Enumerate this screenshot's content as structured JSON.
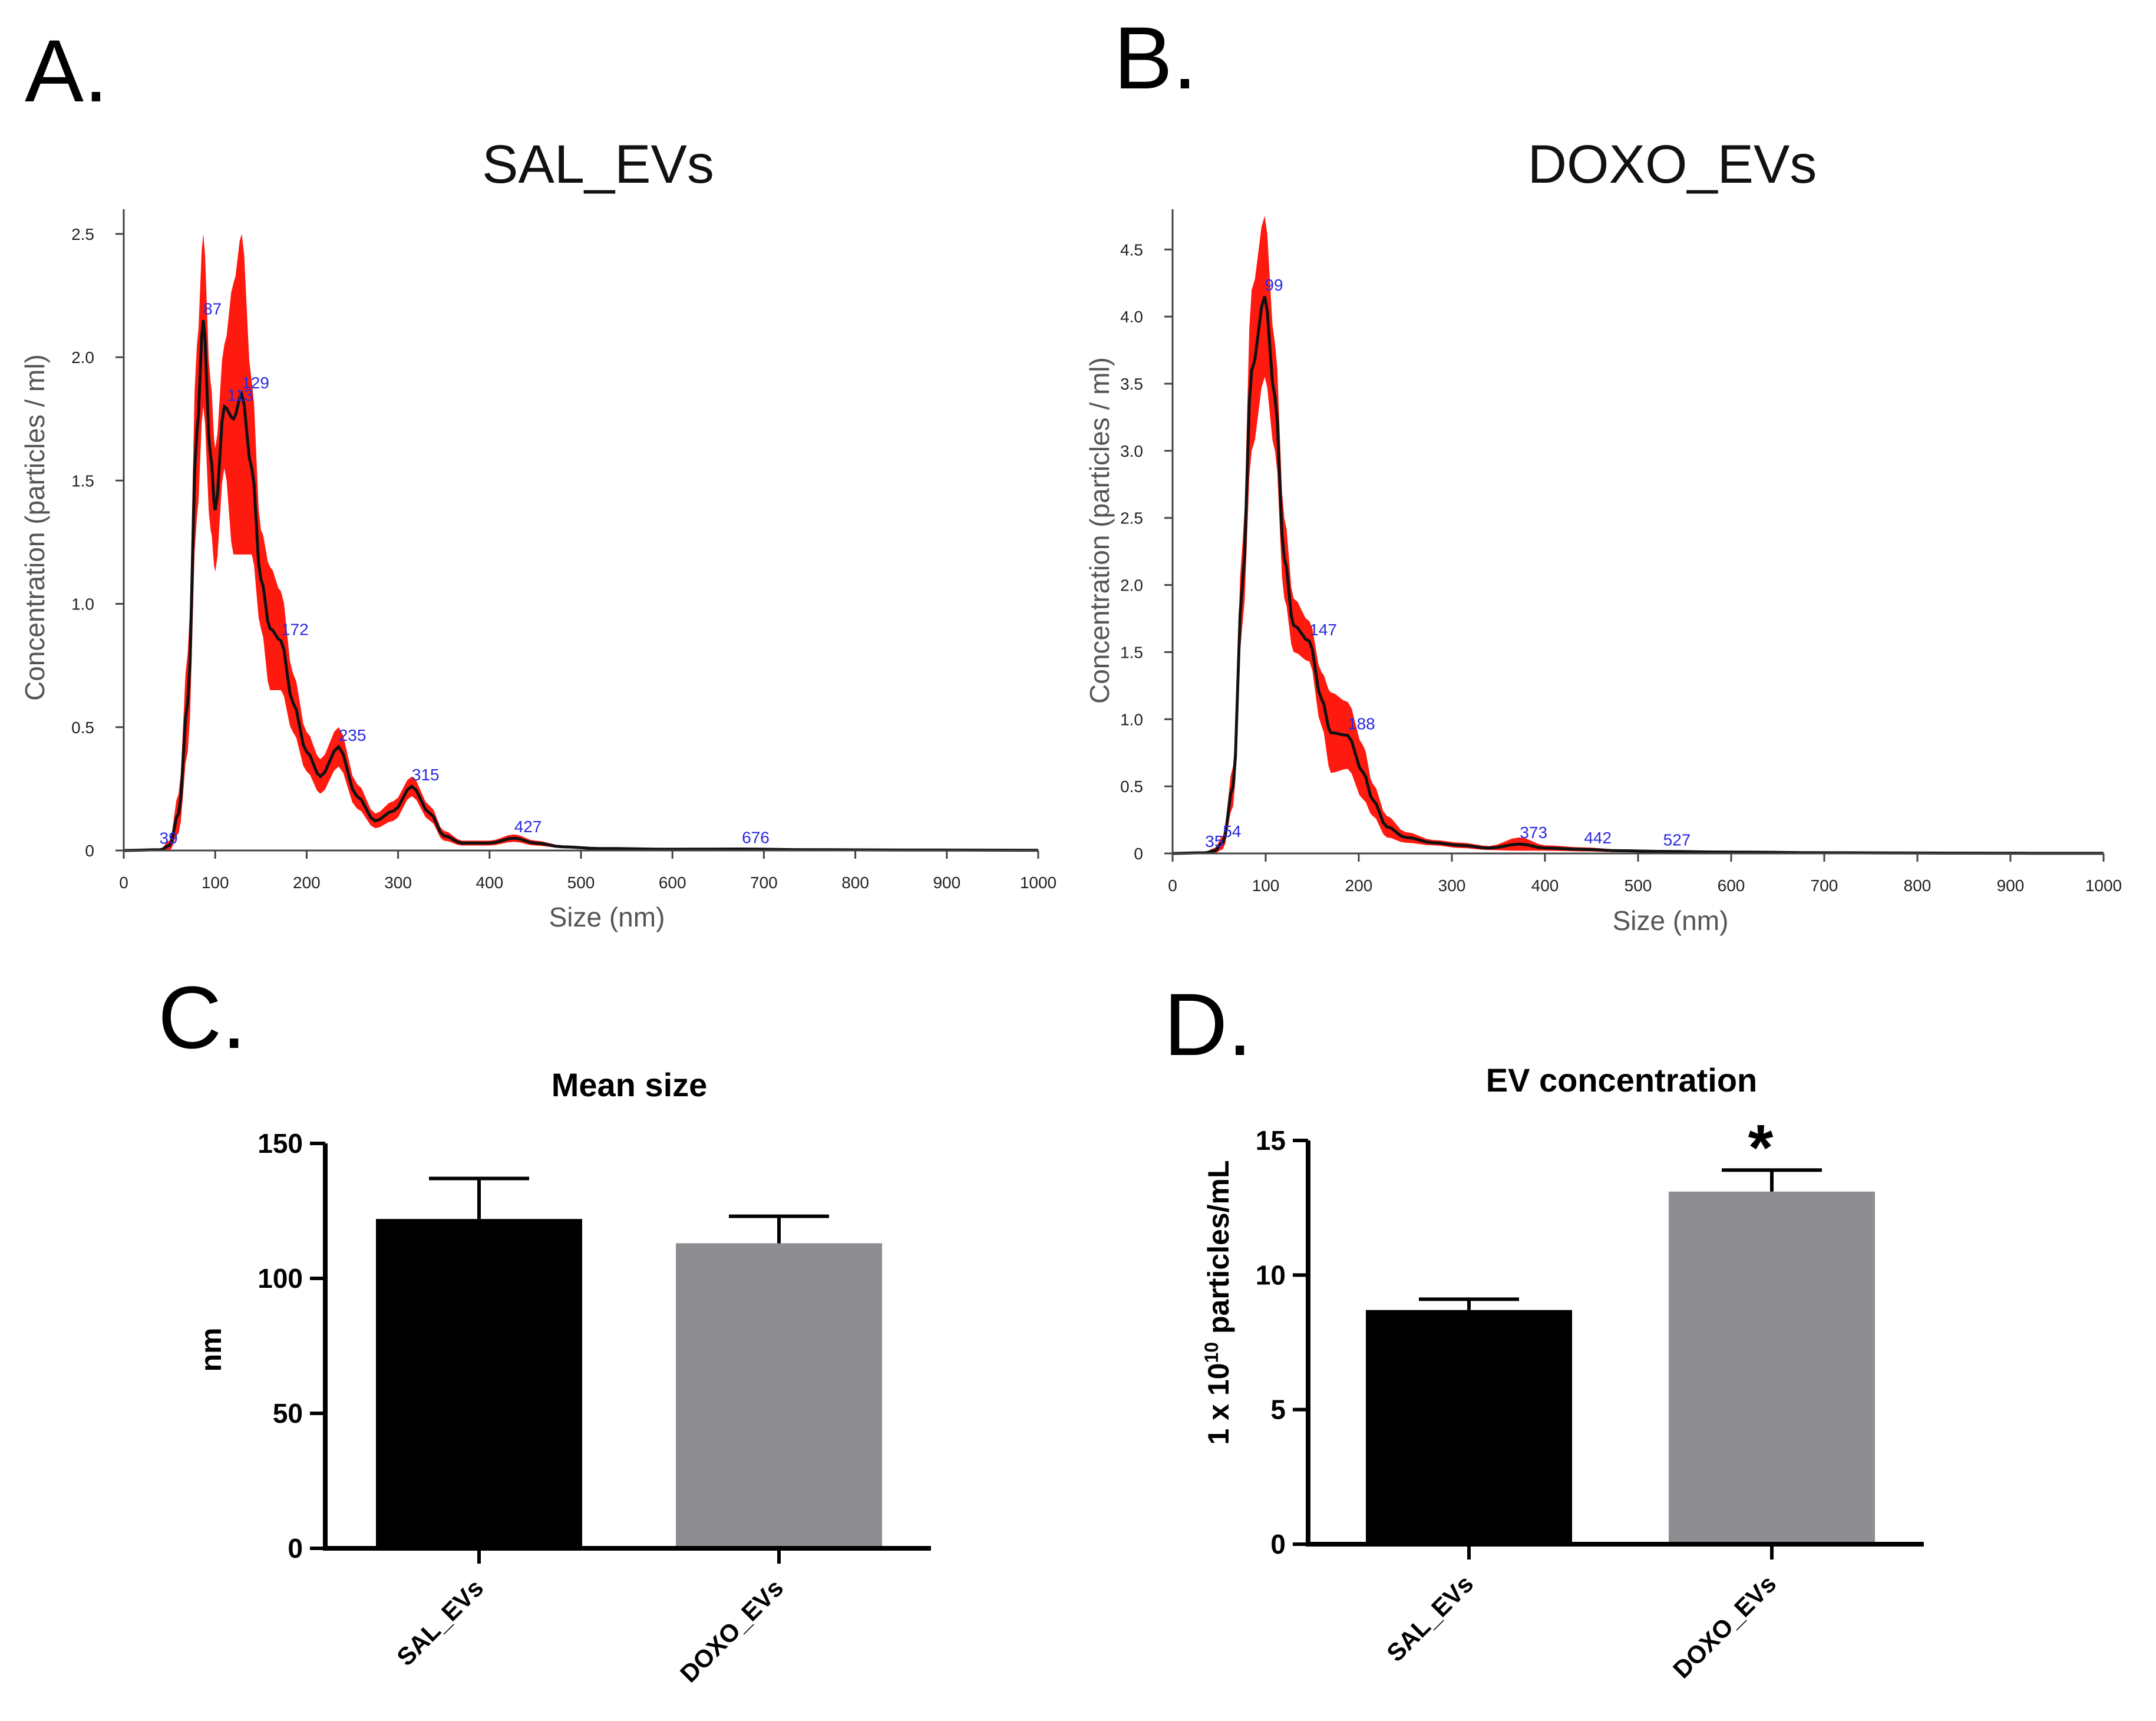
{
  "panel_labels": [
    "A.",
    "B.",
    "C.",
    "D."
  ],
  "chart_data": [
    {
      "type": "line",
      "panel": "A.",
      "title": "SAL_EVs",
      "xlabel": "Size (nm)",
      "ylabel": "Concentration (particles / ml)",
      "xlim": [
        0,
        1000
      ],
      "ylim": [
        0,
        2.6
      ],
      "xticks": [
        "0",
        "100",
        "200",
        "300",
        "400",
        "500",
        "600",
        "700",
        "800",
        "900",
        "1000"
      ],
      "yticks": [
        "0",
        "0.5",
        "1.0",
        "1.5",
        "2.0",
        "2.5"
      ],
      "line_color": "#111111",
      "band_color": "#ff1a10",
      "peak_color": "#2a2ae0",
      "x": [
        0,
        40,
        50,
        60,
        70,
        80,
        87,
        95,
        100,
        110,
        120,
        129,
        140,
        150,
        160,
        172,
        185,
        200,
        215,
        235,
        255,
        275,
        295,
        315,
        335,
        350,
        370,
        400,
        427,
        450,
        480,
        520,
        600,
        676,
        750,
        850,
        1000
      ],
      "y": [
        0,
        0.003,
        0.02,
        0.15,
        0.6,
        1.7,
        2.15,
        1.6,
        1.38,
        1.8,
        1.75,
        1.85,
        1.55,
        1.1,
        0.9,
        0.85,
        0.6,
        0.4,
        0.3,
        0.42,
        0.22,
        0.12,
        0.16,
        0.26,
        0.15,
        0.06,
        0.03,
        0.03,
        0.05,
        0.03,
        0.015,
        0.008,
        0.005,
        0.006,
        0.003,
        0.002,
        0.001
      ],
      "err": [
        0,
        0.002,
        0.02,
        0.08,
        0.2,
        0.35,
        0.35,
        0.3,
        0.25,
        0.25,
        0.55,
        0.65,
        0.35,
        0.2,
        0.25,
        0.2,
        0.12,
        0.08,
        0.07,
        0.08,
        0.05,
        0.03,
        0.04,
        0.04,
        0.03,
        0.02,
        0.01,
        0.01,
        0.015,
        0.01,
        0.005,
        0.004,
        0.003,
        0.003,
        0.002,
        0.002,
        0.001
      ],
      "peaks": [
        {
          "x": 39,
          "y": 0.003,
          "label": "39"
        },
        {
          "x": 87,
          "y": 2.15,
          "label": "87"
        },
        {
          "x": 113,
          "y": 1.8,
          "label": "113"
        },
        {
          "x": 129,
          "y": 1.85,
          "label": "129"
        },
        {
          "x": 172,
          "y": 0.85,
          "label": "172"
        },
        {
          "x": 235,
          "y": 0.42,
          "label": "235"
        },
        {
          "x": 315,
          "y": 0.26,
          "label": "315"
        },
        {
          "x": 427,
          "y": 0.05,
          "label": "427"
        },
        {
          "x": 676,
          "y": 0.006,
          "label": "676"
        }
      ]
    },
    {
      "type": "line",
      "panel": "B.",
      "title": "DOXO_EVs",
      "xlabel": "Size (nm)",
      "ylabel": "Concentration (particles / ml)",
      "xlim": [
        0,
        1000
      ],
      "ylim": [
        0,
        4.8
      ],
      "xticks": [
        "0",
        "100",
        "200",
        "300",
        "400",
        "500",
        "600",
        "700",
        "800",
        "900",
        "1000"
      ],
      "yticks": [
        "0",
        "0.5",
        "1.0",
        "1.5",
        "2.0",
        "2.5",
        "3.0",
        "3.5",
        "4.0",
        "4.5"
      ],
      "line_color": "#111111",
      "band_color": "#ff1a10",
      "peak_color": "#2a2ae0",
      "x": [
        0,
        35,
        45,
        54,
        65,
        75,
        85,
        99,
        110,
        120,
        130,
        147,
        160,
        170,
        188,
        205,
        215,
        230,
        250,
        280,
        310,
        340,
        373,
        400,
        442,
        480,
        527,
        600,
        700,
        850,
        1000
      ],
      "y": [
        0,
        0.005,
        0.02,
        0.08,
        0.5,
        2.0,
        3.6,
        4.15,
        3.4,
        2.2,
        1.7,
        1.58,
        1.15,
        0.9,
        0.88,
        0.6,
        0.4,
        0.2,
        0.12,
        0.08,
        0.06,
        0.04,
        0.07,
        0.04,
        0.03,
        0.02,
        0.015,
        0.01,
        0.005,
        0.002,
        0.001
      ],
      "err": [
        0,
        0.003,
        0.02,
        0.05,
        0.15,
        0.3,
        0.6,
        0.6,
        0.4,
        0.3,
        0.2,
        0.15,
        0.2,
        0.3,
        0.25,
        0.2,
        0.12,
        0.08,
        0.04,
        0.02,
        0.02,
        0.015,
        0.05,
        0.02,
        0.015,
        0.01,
        0.01,
        0.005,
        0.004,
        0.002,
        0.001
      ],
      "peaks": [
        {
          "x": 35,
          "y": 0.005,
          "label": "35"
        },
        {
          "x": 54,
          "y": 0.08,
          "label": "54"
        },
        {
          "x": 99,
          "y": 4.15,
          "label": "99"
        },
        {
          "x": 147,
          "y": 1.58,
          "label": "147"
        },
        {
          "x": 188,
          "y": 0.88,
          "label": "188"
        },
        {
          "x": 373,
          "y": 0.07,
          "label": "373"
        },
        {
          "x": 442,
          "y": 0.03,
          "label": "442"
        },
        {
          "x": 527,
          "y": 0.015,
          "label": "527"
        }
      ]
    },
    {
      "type": "bar",
      "panel": "C.",
      "title": "Mean size",
      "ylabel": "nm",
      "categories": [
        "SAL_EVs",
        "DOXO_EVs"
      ],
      "values": [
        122,
        113
      ],
      "errors": [
        15,
        10
      ],
      "colors": [
        "#000000",
        "#8e8e92"
      ],
      "ylim": [
        0,
        150
      ],
      "yticks": [
        "0",
        "50",
        "100",
        "150"
      ]
    },
    {
      "type": "bar",
      "panel": "D.",
      "title": "EV concentration",
      "ylabel": "1 x 10",
      "ylabel_sup": "10",
      "ylabel_tail": " particles/mL",
      "categories": [
        "SAL_EVs",
        "DOXO_EVs"
      ],
      "values": [
        8.7,
        13.1
      ],
      "errors": [
        0.4,
        0.8
      ],
      "colors": [
        "#000000",
        "#8e8e92"
      ],
      "ylim": [
        0,
        15
      ],
      "yticks": [
        "0",
        "5",
        "10",
        "15"
      ],
      "significance": "*"
    }
  ]
}
